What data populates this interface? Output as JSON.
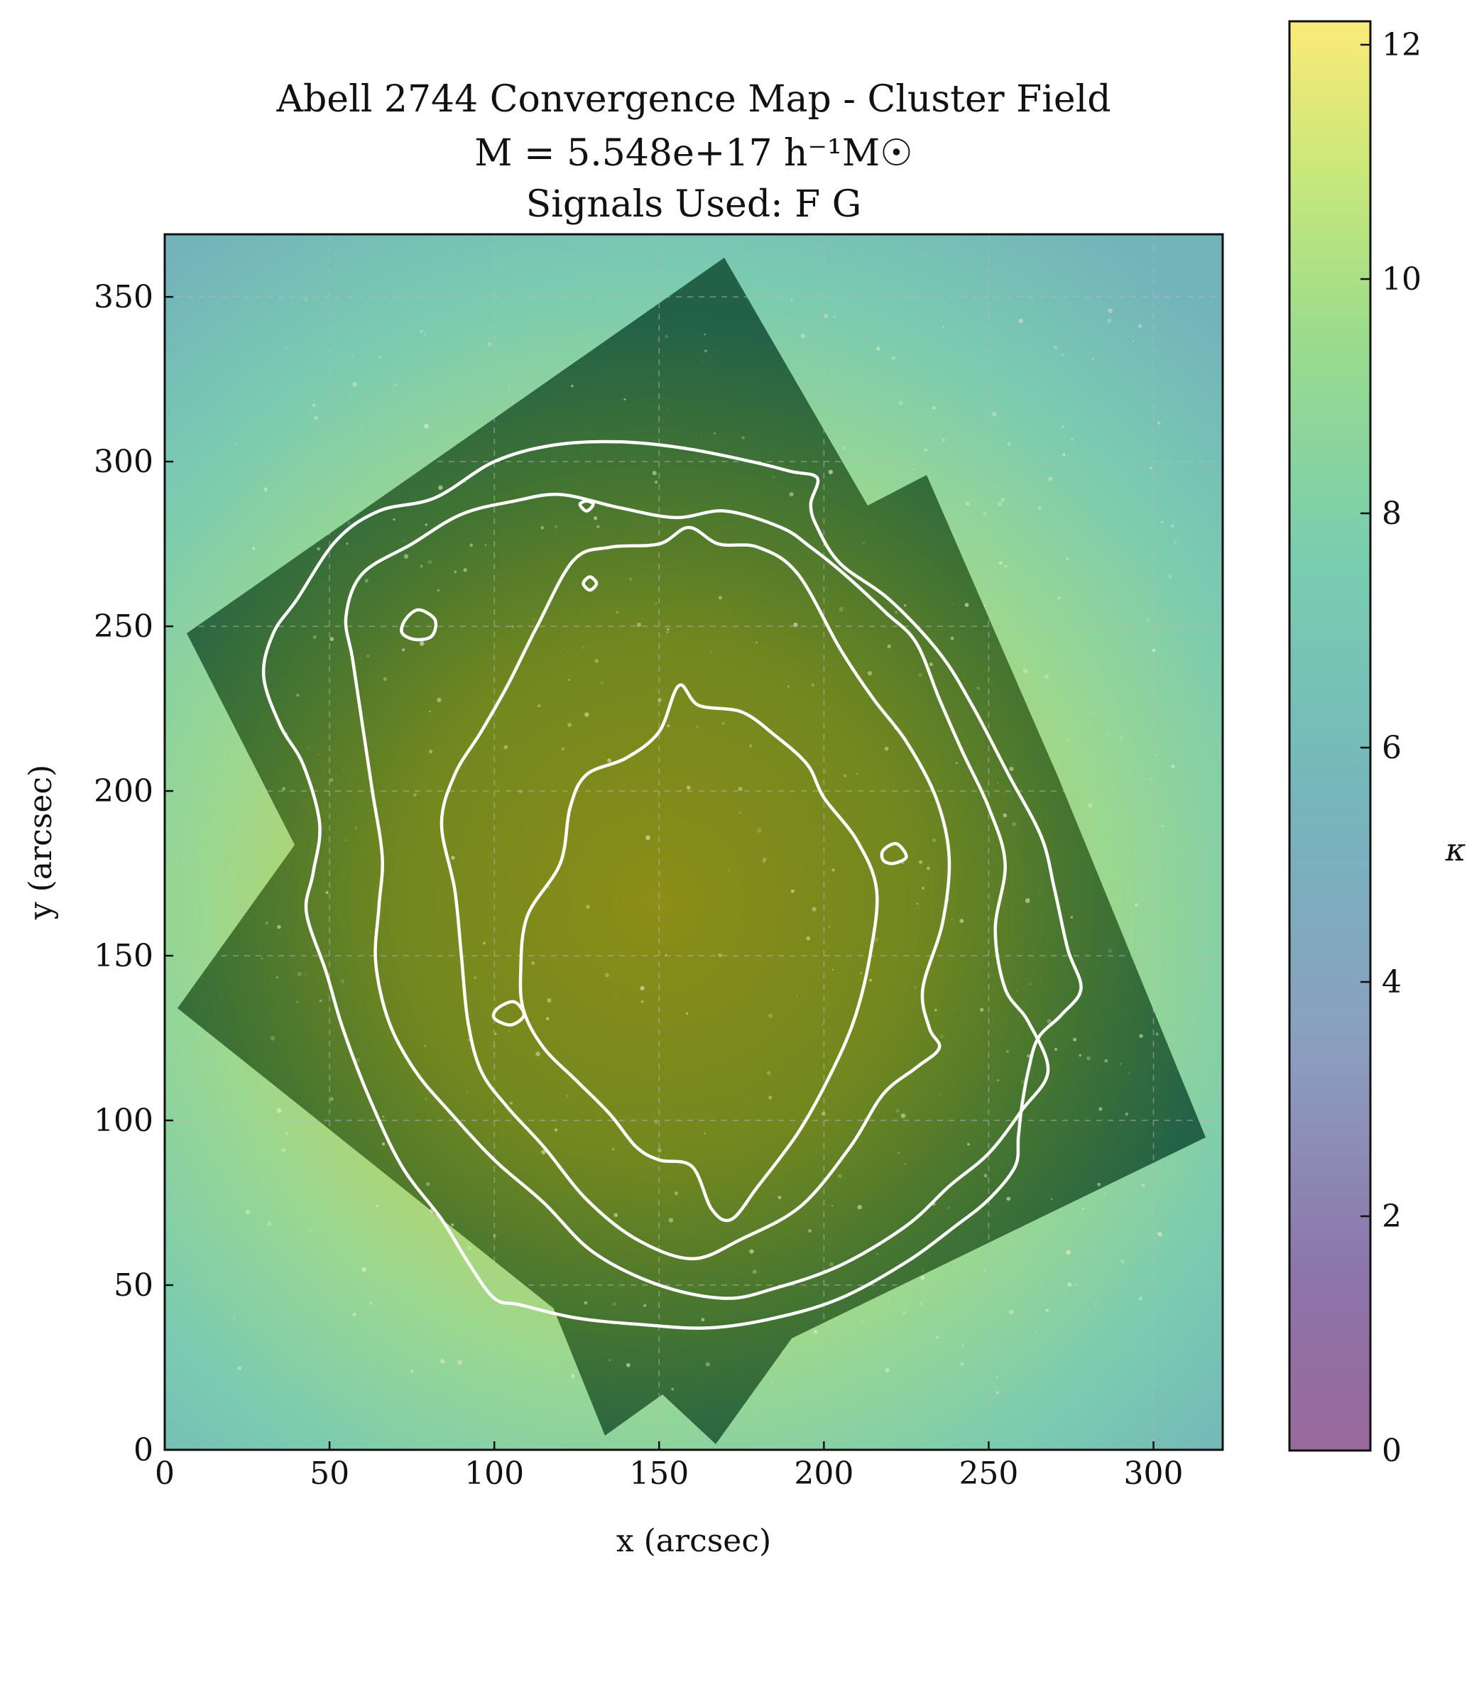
{
  "chart_data": {
    "type": "heatmap",
    "title_lines": [
      "Abell 2744 Convergence Map - Cluster Field",
      "M = 5.548e+17 h⁻¹M☉",
      "Signals Used: F G"
    ],
    "xlabel": "x (arcsec)",
    "ylabel": "y (arcsec)",
    "xlim": [
      0,
      321
    ],
    "ylim": [
      0,
      369
    ],
    "xticks": [
      0,
      50,
      100,
      150,
      200,
      250,
      300
    ],
    "yticks": [
      0,
      50,
      100,
      150,
      200,
      250,
      300,
      350
    ],
    "grid": true,
    "colorbar": {
      "label": "κ",
      "range": [
        0,
        12.2
      ],
      "ticks": [
        0,
        2,
        4,
        6,
        8,
        10,
        12
      ],
      "colormap": "viridis",
      "alpha": 0.6
    },
    "overlay": "HST image of cluster field",
    "contours": [
      {
        "name": "contour-1",
        "points": [
          [
            120,
            178
          ],
          [
            123,
            195
          ],
          [
            128,
            205
          ],
          [
            140,
            210
          ],
          [
            150,
            218
          ],
          [
            156,
            232
          ],
          [
            162,
            226
          ],
          [
            175,
            224
          ],
          [
            185,
            217
          ],
          [
            195,
            208
          ],
          [
            200,
            198
          ],
          [
            210,
            185
          ],
          [
            216,
            170
          ],
          [
            214,
            150
          ],
          [
            209,
            130
          ],
          [
            201,
            112
          ],
          [
            192,
            96
          ],
          [
            180,
            80
          ],
          [
            172,
            70
          ],
          [
            166,
            73
          ],
          [
            160,
            86
          ],
          [
            150,
            88
          ],
          [
            143,
            92
          ],
          [
            135,
            102
          ],
          [
            125,
            112
          ],
          [
            115,
            122
          ],
          [
            109,
            133
          ],
          [
            108,
            145
          ],
          [
            110,
            162
          ]
        ]
      },
      {
        "name": "contour-2",
        "points": [
          [
            88,
            205
          ],
          [
            96,
            218
          ],
          [
            104,
            232
          ],
          [
            113,
            250
          ],
          [
            124,
            270
          ],
          [
            135,
            274
          ],
          [
            150,
            275
          ],
          [
            159,
            280
          ],
          [
            168,
            275
          ],
          [
            180,
            274
          ],
          [
            192,
            266
          ],
          [
            205,
            243
          ],
          [
            215,
            228
          ],
          [
            225,
            215
          ],
          [
            234,
            198
          ],
          [
            238,
            180
          ],
          [
            236,
            160
          ],
          [
            230,
            140
          ],
          [
            232,
            128
          ],
          [
            235,
            122
          ],
          [
            228,
            116
          ],
          [
            218,
            108
          ],
          [
            208,
            92
          ],
          [
            193,
            74
          ],
          [
            175,
            64
          ],
          [
            160,
            58
          ],
          [
            143,
            64
          ],
          [
            128,
            76
          ],
          [
            115,
            92
          ],
          [
            104,
            104
          ],
          [
            96,
            115
          ],
          [
            92,
            130
          ],
          [
            90,
            150
          ],
          [
            88,
            170
          ],
          [
            84,
            190
          ]
        ]
      },
      {
        "name": "contour-3",
        "points": [
          [
            55,
            253
          ],
          [
            60,
            266
          ],
          [
            75,
            275
          ],
          [
            90,
            284
          ],
          [
            106,
            288
          ],
          [
            120,
            290
          ],
          [
            138,
            286
          ],
          [
            155,
            283
          ],
          [
            170,
            285
          ],
          [
            187,
            280
          ],
          [
            196,
            274
          ],
          [
            206,
            266
          ],
          [
            219,
            254
          ],
          [
            228,
            245
          ],
          [
            235,
            228
          ],
          [
            242,
            212
          ],
          [
            250,
            195
          ],
          [
            255,
            178
          ],
          [
            252,
            158
          ],
          [
            255,
            140
          ],
          [
            262,
            130
          ],
          [
            268,
            115
          ],
          [
            260,
            103
          ],
          [
            250,
            90
          ],
          [
            238,
            80
          ],
          [
            225,
            68
          ],
          [
            205,
            56
          ],
          [
            185,
            49
          ],
          [
            170,
            46
          ],
          [
            150,
            50
          ],
          [
            130,
            60
          ],
          [
            115,
            75
          ],
          [
            100,
            88
          ],
          [
            87,
            102
          ],
          [
            76,
            115
          ],
          [
            68,
            130
          ],
          [
            64,
            148
          ],
          [
            65,
            165
          ],
          [
            66,
            180
          ],
          [
            63,
            200
          ],
          [
            60,
            220
          ],
          [
            57,
            240
          ]
        ]
      },
      {
        "name": "contour-4",
        "points": [
          [
            30,
            235
          ],
          [
            33,
            248
          ],
          [
            40,
            258
          ],
          [
            52,
            276
          ],
          [
            65,
            285
          ],
          [
            82,
            289
          ],
          [
            100,
            300
          ],
          [
            118,
            305
          ],
          [
            138,
            306
          ],
          [
            158,
            304
          ],
          [
            178,
            300
          ],
          [
            190,
            297
          ],
          [
            198,
            295
          ],
          [
            196,
            287
          ],
          [
            198,
            280
          ],
          [
            205,
            269
          ],
          [
            220,
            258
          ],
          [
            235,
            242
          ],
          [
            245,
            226
          ],
          [
            256,
            205
          ],
          [
            266,
            186
          ],
          [
            270,
            170
          ],
          [
            274,
            152
          ],
          [
            278,
            140
          ],
          [
            272,
            132
          ],
          [
            265,
            125
          ],
          [
            262,
            115
          ],
          [
            260,
            104
          ],
          [
            259,
            95
          ],
          [
            258,
            86
          ],
          [
            250,
            76
          ],
          [
            240,
            68
          ],
          [
            225,
            57
          ],
          [
            205,
            46
          ],
          [
            185,
            40
          ],
          [
            165,
            37
          ],
          [
            145,
            38
          ],
          [
            125,
            40
          ],
          [
            108,
            44
          ],
          [
            100,
            46
          ],
          [
            92,
            57
          ],
          [
            84,
            70
          ],
          [
            72,
            86
          ],
          [
            62,
            107
          ],
          [
            54,
            128
          ],
          [
            49,
            145
          ],
          [
            43,
            163
          ],
          [
            45,
            175
          ],
          [
            47,
            190
          ],
          [
            42,
            208
          ],
          [
            35,
            220
          ]
        ]
      },
      {
        "name": "contour-blob-a",
        "points": [
          [
            73,
            252
          ],
          [
            77,
            255
          ],
          [
            82,
            252
          ],
          [
            81,
            247
          ],
          [
            76,
            246
          ],
          [
            72,
            248
          ]
        ]
      },
      {
        "name": "contour-blob-b",
        "points": [
          [
            101,
            134
          ],
          [
            106,
            136
          ],
          [
            109,
            132
          ],
          [
            105,
            129
          ],
          [
            100,
            131
          ]
        ]
      },
      {
        "name": "contour-blob-c",
        "points": [
          [
            218,
            182
          ],
          [
            222,
            184
          ],
          [
            225,
            180
          ],
          [
            221,
            178
          ],
          [
            218,
            179
          ]
        ]
      },
      {
        "name": "contour-blob-d",
        "points": [
          [
            127,
            263
          ],
          [
            129,
            265
          ],
          [
            131,
            263
          ],
          [
            129,
            261
          ]
        ]
      },
      {
        "name": "contour-blob-e",
        "points": [
          [
            126,
            287
          ],
          [
            128,
            288
          ],
          [
            130,
            287
          ],
          [
            128,
            285
          ]
        ]
      }
    ]
  }
}
